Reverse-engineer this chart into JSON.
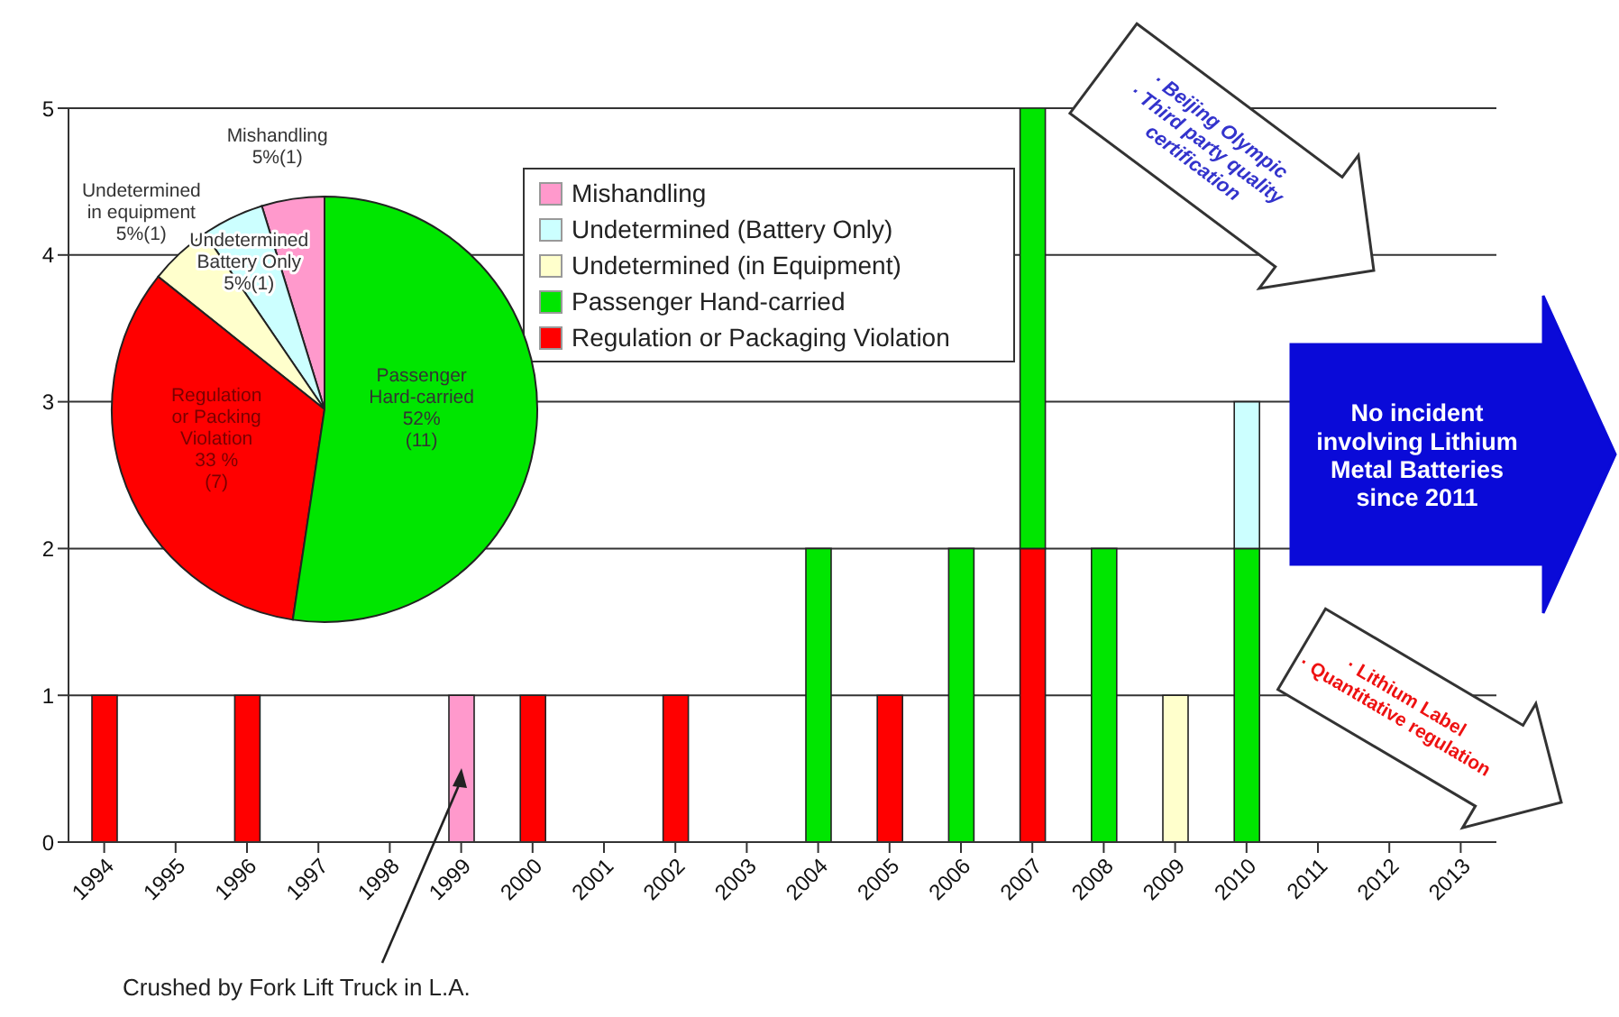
{
  "chart_data": [
    {
      "type": "bar",
      "stacked": true,
      "categories": [
        "1994",
        "1995",
        "1996",
        "1997",
        "1998",
        "1999",
        "2000",
        "2001",
        "2002",
        "2003",
        "2004",
        "2005",
        "2006",
        "2007",
        "2008",
        "2009",
        "2010",
        "2011",
        "2012",
        "2013"
      ],
      "series": [
        {
          "name": "Regulation or Packaging Violation",
          "color": "#ff0000",
          "values": [
            1,
            null,
            1,
            null,
            null,
            null,
            1,
            null,
            1,
            null,
            null,
            1,
            null,
            2,
            null,
            null,
            null,
            null,
            null,
            null
          ]
        },
        {
          "name": "Passenger Hand-carried",
          "color": "#00e600",
          "values": [
            null,
            null,
            null,
            null,
            null,
            null,
            null,
            null,
            null,
            null,
            2,
            null,
            2,
            3,
            2,
            null,
            2,
            null,
            null,
            null
          ]
        },
        {
          "name": "Undetermined (in Equipment)",
          "color": "#ffffcc",
          "values": [
            null,
            null,
            null,
            null,
            null,
            null,
            null,
            null,
            null,
            null,
            null,
            null,
            null,
            null,
            null,
            1,
            null,
            null,
            null,
            null
          ]
        },
        {
          "name": "Undetermined (Battery Only)",
          "color": "#ccffff",
          "values": [
            null,
            null,
            null,
            null,
            null,
            null,
            null,
            null,
            null,
            null,
            null,
            null,
            null,
            null,
            null,
            null,
            1,
            null,
            null,
            null
          ]
        },
        {
          "name": "Mishandling",
          "color": "#ff99cc",
          "values": [
            null,
            null,
            null,
            null,
            null,
            1,
            null,
            null,
            null,
            null,
            null,
            null,
            null,
            null,
            null,
            null,
            null,
            null,
            null,
            null
          ]
        }
      ],
      "ylim": [
        0,
        5
      ],
      "yticks": [
        0,
        1,
        2,
        3,
        4,
        5
      ],
      "grid": "y",
      "legend": "top",
      "annotations": [
        "Crushed by Fork Lift Truck in L.A.",
        "· Beijing Olympic\n· Third party quality certification",
        "· Lithium Label\n· Quantitative regulation",
        "No incident involving Lithium Metal Batteries since 2011"
      ]
    },
    {
      "type": "pie",
      "categories": [
        "Mishandling",
        "Undetermined Battery Only",
        "Undetermined in equipment",
        "Regulation or Packing Violation",
        "Passenger Hard-carried"
      ],
      "values": [
        1,
        1,
        1,
        7,
        11
      ],
      "colors": [
        "#ff99cc",
        "#ccffff",
        "#ffffcc",
        "#ff0000",
        "#00e600"
      ],
      "value_labels": [
        "5%(1)",
        "5%(1)",
        "5%(1)",
        "33 %\n(7)",
        "52%\n(11)"
      ]
    }
  ]
}
